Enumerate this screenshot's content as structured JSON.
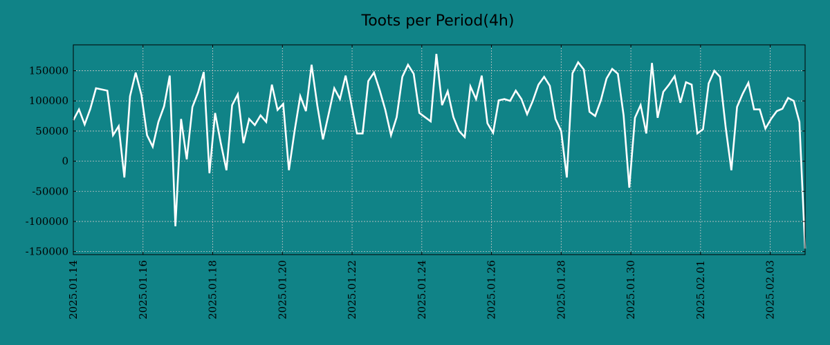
{
  "chart_data": {
    "type": "line",
    "title": "Toots per Period(4h)",
    "xlabel": "",
    "ylabel": "",
    "x_start": "2025.01.14",
    "x_end": "2025.02.04",
    "period_hours": 4,
    "grid": true,
    "ylim": [
      -155000,
      193000
    ],
    "y_ticks": [
      150000,
      100000,
      50000,
      0,
      -50000,
      -100000,
      -150000
    ],
    "y_tick_labels": [
      "150000",
      "100000",
      "50000",
      "0",
      "-50000",
      "-100000",
      "-150000"
    ],
    "x_tick_labels": [
      "2025.01.14",
      "2025.01.16",
      "2025.01.18",
      "2025.01.20",
      "2025.01.22",
      "2025.01.24",
      "2025.01.26",
      "2025.01.28",
      "2025.01.30",
      "2025.02.01",
      "2025.02.03"
    ],
    "colors": {
      "background": "#108387",
      "line": "#ffffff",
      "grid": "#c8c8c8",
      "axes": "#000000"
    },
    "series": [
      {
        "name": "Toots",
        "values": [
          68000,
          86000,
          61000,
          87000,
          121000,
          119000,
          117000,
          43000,
          58000,
          -27000,
          108000,
          147000,
          110000,
          43000,
          24000,
          65000,
          91000,
          142000,
          -108000,
          70000,
          3000,
          90000,
          114000,
          148000,
          -20000,
          80000,
          30000,
          -15000,
          93000,
          111000,
          30000,
          70000,
          60000,
          76000,
          65000,
          127000,
          85000,
          95000,
          -15000,
          50000,
          108000,
          83000,
          160000,
          93000,
          36000,
          78000,
          121000,
          103000,
          142000,
          95000,
          46000,
          46000,
          133000,
          147000,
          118000,
          85000,
          43000,
          73000,
          140000,
          160000,
          145000,
          80000,
          73000,
          66000,
          178000,
          93000,
          116000,
          73000,
          50000,
          40000,
          124000,
          103000,
          142000,
          63000,
          47000,
          101000,
          103000,
          100000,
          117000,
          103000,
          78000,
          100000,
          127000,
          140000,
          125000,
          70000,
          50000,
          -27000,
          146000,
          164000,
          152000,
          82000,
          75000,
          101000,
          137000,
          153000,
          145000,
          76000,
          -44000,
          72000,
          93000,
          46000,
          163000,
          72000,
          115000,
          127000,
          141000,
          97000,
          131000,
          127000,
          46000,
          53000,
          129000,
          150000,
          140000,
          56000,
          -15000,
          90000,
          112000,
          130000,
          86000,
          86000,
          54000,
          70000,
          83000,
          87000,
          105000,
          100000,
          65000,
          -145000
        ]
      }
    ]
  }
}
